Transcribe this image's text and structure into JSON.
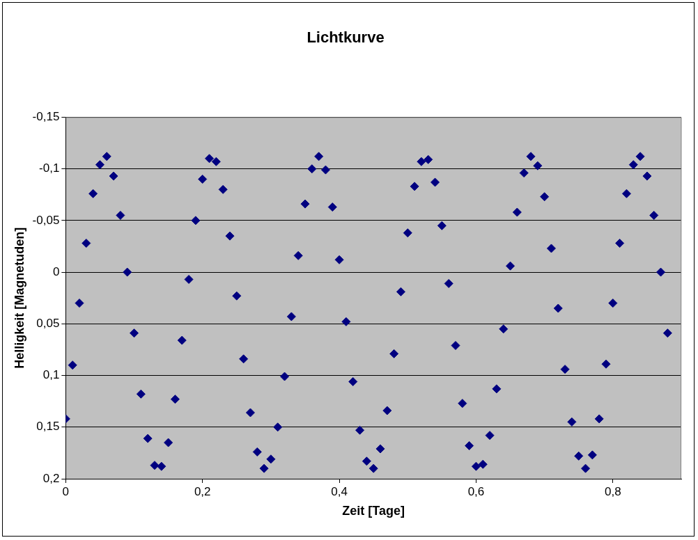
{
  "chart_data": {
    "type": "scatter",
    "title": "Lichtkurve",
    "xlabel": "Zeit [Tage]",
    "ylabel": "Helligkeit [Magnetuden]",
    "x": [
      0,
      0.01,
      0.02,
      0.03,
      0.04,
      0.05,
      0.06,
      0.07,
      0.08,
      0.09,
      0.1,
      0.11,
      0.12,
      0.13,
      0.14,
      0.15,
      0.16,
      0.17,
      0.18,
      0.19,
      0.2,
      0.21,
      0.22,
      0.23,
      0.24,
      0.25,
      0.26,
      0.27,
      0.28,
      0.29,
      0.3,
      0.31,
      0.32,
      0.33,
      0.34,
      0.35,
      0.36,
      0.37,
      0.38,
      0.39,
      0.4,
      0.41,
      0.42,
      0.43,
      0.44,
      0.45,
      0.46,
      0.47,
      0.48,
      0.49,
      0.5,
      0.51,
      0.52,
      0.53,
      0.54,
      0.55,
      0.56,
      0.57,
      0.58,
      0.59,
      0.6,
      0.61,
      0.62,
      0.63,
      0.64,
      0.65,
      0.66,
      0.67,
      0.68,
      0.69,
      0.7,
      0.71,
      0.72,
      0.73,
      0.74,
      0.75,
      0.76,
      0.77,
      0.78,
      0.79,
      0.8,
      0.81,
      0.82,
      0.83,
      0.84,
      0.85,
      0.86,
      0.87,
      0.88
    ],
    "series": [
      {
        "color": "#000080",
        "values": [
          0.142,
          0.09,
          0.03,
          -0.028,
          -0.076,
          -0.104,
          -0.112,
          -0.093,
          -0.055,
          0,
          0.059,
          0.118,
          0.161,
          0.187,
          0.188,
          0.165,
          0.123,
          0.066,
          0.007,
          -0.05,
          -0.09,
          -0.11,
          -0.107,
          -0.08,
          -0.035,
          0.023,
          0.084,
          0.136,
          0.174,
          0.19,
          0.181,
          0.15,
          0.101,
          0.043,
          -0.016,
          -0.066,
          -0.1,
          -0.112,
          -0.099,
          -0.063,
          -0.012,
          0.048,
          0.106,
          0.153,
          0.183,
          0.19,
          0.171,
          0.134,
          0.079,
          0.019,
          -0.038,
          -0.083,
          -0.107,
          -0.109,
          -0.087,
          -0.045,
          0.011,
          0.071,
          0.127,
          0.168,
          0.188,
          0.186,
          0.158,
          0.113,
          0.055,
          -0.006,
          -0.058,
          -0.096,
          -0.112,
          -0.103,
          -0.073,
          -0.023,
          0.035,
          0.094,
          0.145,
          0.178,
          0.19,
          0.177,
          0.142,
          0.089,
          0.03,
          -0.028,
          -0.076,
          -0.104,
          -0.112,
          -0.093,
          -0.055,
          0,
          0.059
        ]
      }
    ],
    "xlim": [
      0,
      0.9
    ],
    "xticks": [
      {
        "value": 0,
        "label": "0"
      },
      {
        "value": 0.2,
        "label": "0,2"
      },
      {
        "value": 0.4,
        "label": "0,4"
      },
      {
        "value": 0.6,
        "label": "0,6"
      },
      {
        "value": 0.8,
        "label": "0,8"
      }
    ],
    "ylim": [
      0.2,
      -0.15
    ],
    "yticks": [
      {
        "value": -0.15,
        "label": "-0,15"
      },
      {
        "value": -0.1,
        "label": "-0,1"
      },
      {
        "value": -0.05,
        "label": "-0,05"
      },
      {
        "value": 0,
        "label": "0"
      },
      {
        "value": 0.05,
        "label": "0,05"
      },
      {
        "value": 0.1,
        "label": "0,1"
      },
      {
        "value": 0.15,
        "label": "0,15"
      },
      {
        "value": 0.2,
        "label": "0,2"
      }
    ],
    "grid": "y",
    "legend": false,
    "marker": "diamond"
  }
}
